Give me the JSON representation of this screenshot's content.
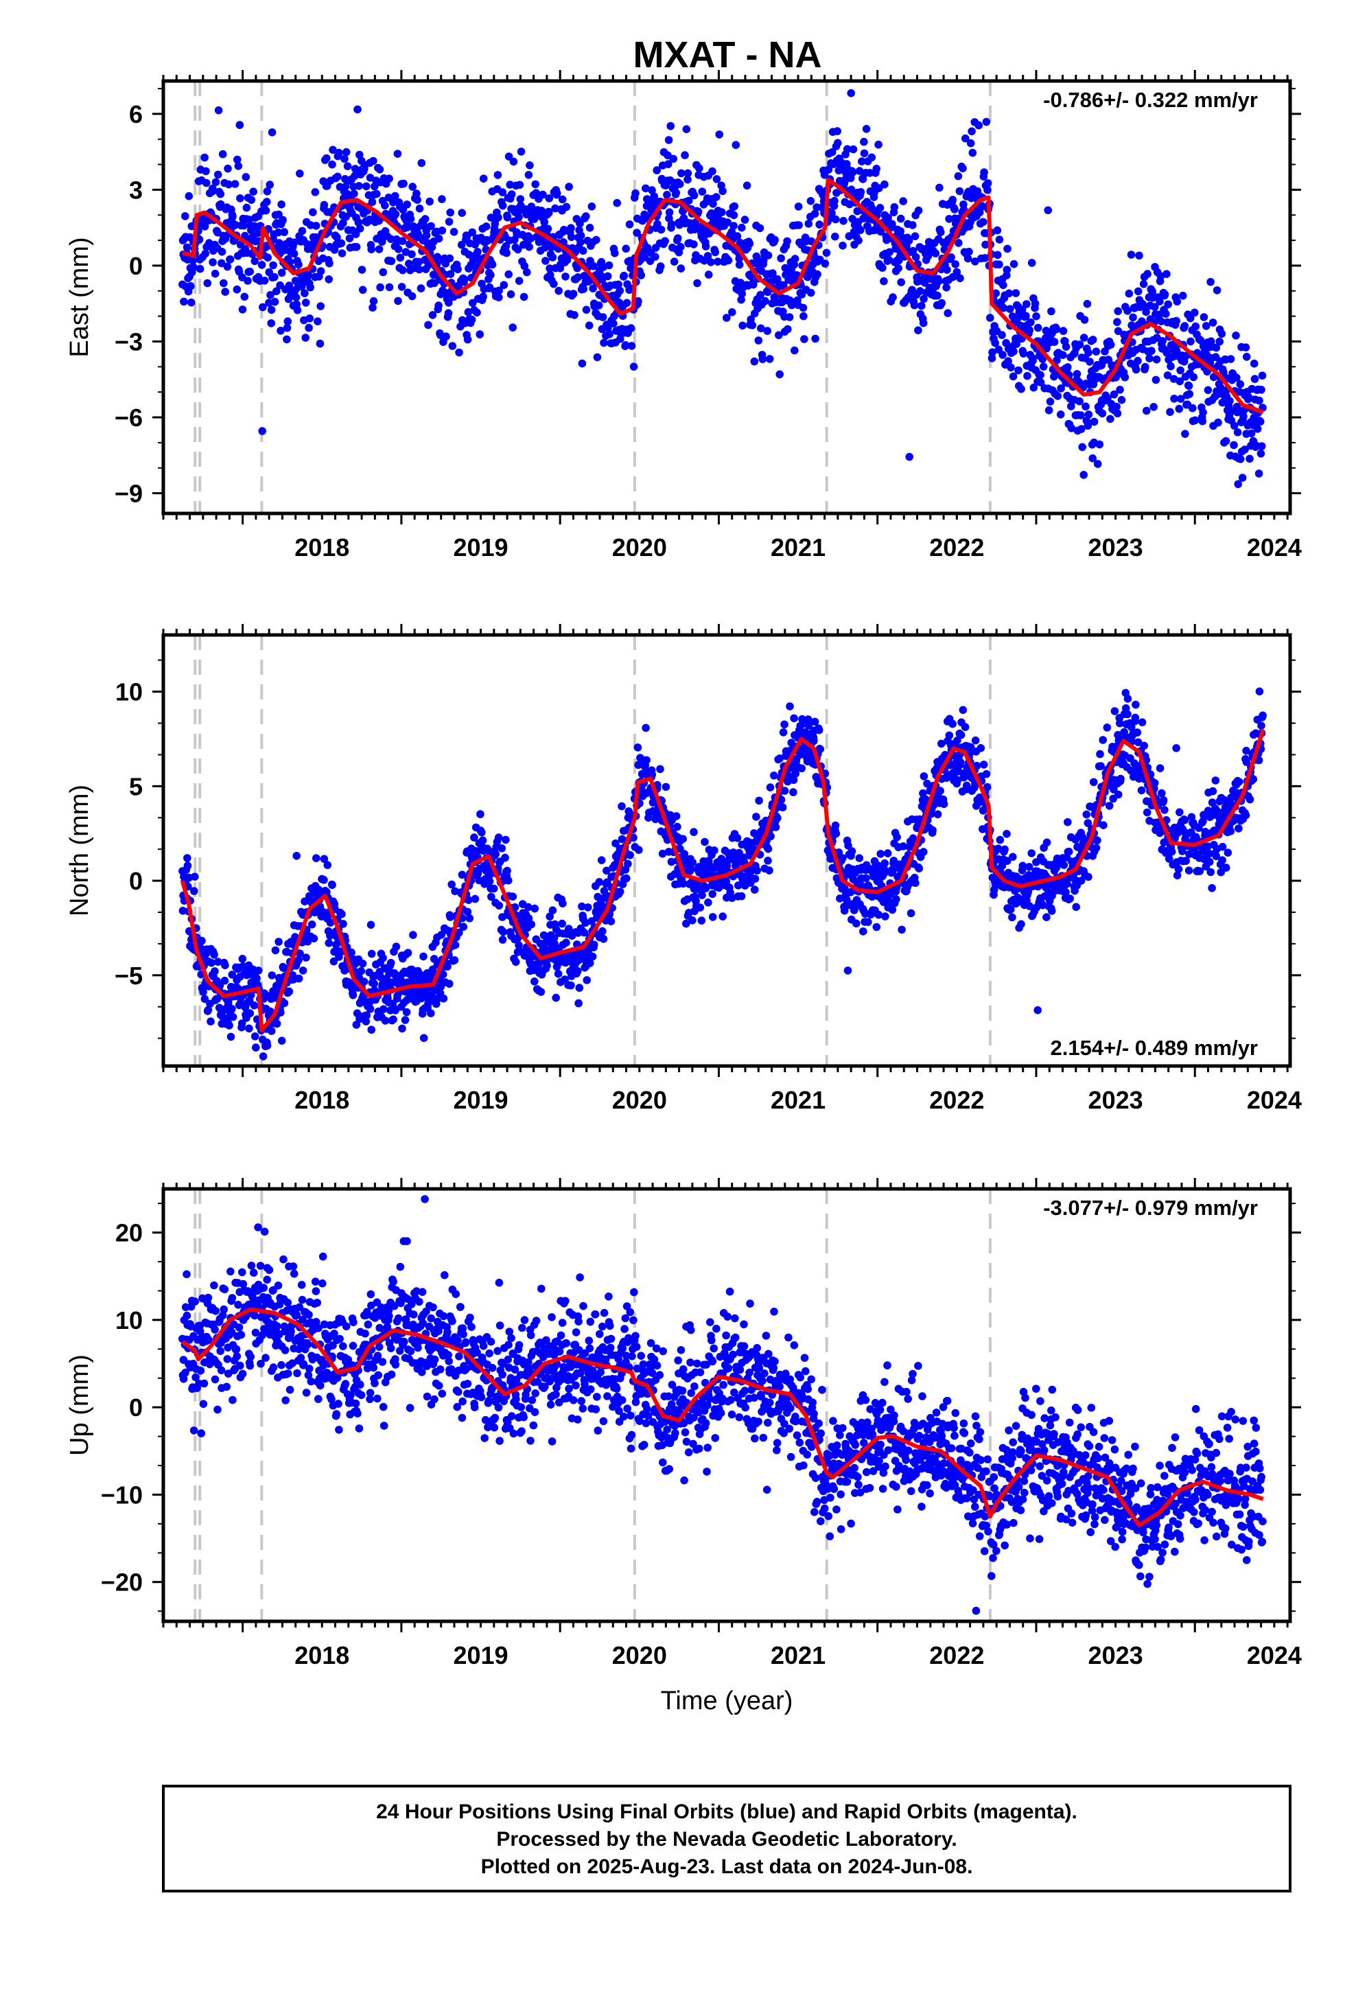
{
  "title": "MXAT - NA",
  "colors": {
    "final_orbits": "#0000ff",
    "model_fit": "#ff0000",
    "offset_lines": "#c8c8c8"
  },
  "caption": {
    "line1": "24 Hour Positions Using Final Orbits (blue) and Rapid Orbits (magenta).",
    "line2": "Processed by the Nevada Geodetic Laboratory.",
    "line3": "Plotted on 2025-Aug-23. Last data on 2024-Jun-08."
  },
  "chart_data": [
    {
      "type": "scatter",
      "ylabel": "East (mm)",
      "xlabel": "",
      "rate": "-0.786+/- 0.322 mm/yr",
      "rate_position": "top-right",
      "xlim": [
        2017.5,
        2024.6
      ],
      "ylim": [
        -9.8,
        7.3
      ],
      "xticks": [
        2018,
        2019,
        2020,
        2021,
        2022,
        2023,
        2024
      ],
      "yticks": [
        -9,
        -6,
        -3,
        0,
        3,
        6
      ],
      "offsets": [
        2017.7,
        2017.73,
        2018.12,
        2020.47,
        2021.68,
        2022.71
      ],
      "fit": {
        "x": [
          2017.62,
          2017.69,
          2017.71,
          2017.76,
          2017.85,
          2017.95,
          2018.05,
          2018.11,
          2018.13,
          2018.2,
          2018.32,
          2018.42,
          2018.52,
          2018.62,
          2018.72,
          2018.85,
          2019.0,
          2019.15,
          2019.25,
          2019.35,
          2019.45,
          2019.55,
          2019.65,
          2019.75,
          2019.9,
          2020.05,
          2020.2,
          2020.3,
          2020.38,
          2020.46,
          2020.48,
          2020.56,
          2020.66,
          2020.76,
          2020.88,
          2021.0,
          2021.12,
          2021.25,
          2021.38,
          2021.5,
          2021.6,
          2021.67,
          2021.69,
          2021.78,
          2021.9,
          2022.0,
          2022.12,
          2022.25,
          2022.35,
          2022.45,
          2022.55,
          2022.65,
          2022.7,
          2022.72,
          2022.85,
          2023.0,
          2023.15,
          2023.3,
          2023.4,
          2023.5,
          2023.6,
          2023.72,
          2023.85,
          2024.0,
          2024.15,
          2024.3,
          2024.43
        ],
        "y": [
          0.5,
          0.4,
          2.0,
          2.1,
          1.7,
          1.2,
          0.8,
          0.3,
          1.5,
          0.5,
          -0.3,
          -0.1,
          1.4,
          2.5,
          2.6,
          2.1,
          1.3,
          0.6,
          -0.4,
          -1.1,
          -0.7,
          0.5,
          1.5,
          1.7,
          1.2,
          0.6,
          -0.4,
          -1.3,
          -1.9,
          -1.7,
          0.4,
          1.7,
          2.6,
          2.5,
          1.8,
          1.3,
          0.7,
          -0.5,
          -1.1,
          -0.7,
          0.8,
          1.5,
          3.4,
          3.0,
          2.3,
          1.8,
          1.0,
          -0.2,
          -0.3,
          0.6,
          2.0,
          2.6,
          2.7,
          -1.5,
          -2.4,
          -3.1,
          -4.2,
          -5.1,
          -5.0,
          -4.1,
          -2.7,
          -2.3,
          -2.8,
          -3.6,
          -4.3,
          -5.5,
          -5.8
        ]
      },
      "scatter": {
        "sd": 1.2,
        "outlier": 1.6
      }
    },
    {
      "type": "scatter",
      "ylabel": "North (mm)",
      "xlabel": "",
      "rate": "2.154+/- 0.489 mm/yr",
      "rate_position": "bottom-right",
      "xlim": [
        2017.5,
        2024.6
      ],
      "ylim": [
        -9.8,
        13.0
      ],
      "xticks": [
        2018,
        2019,
        2020,
        2021,
        2022,
        2023,
        2024
      ],
      "yticks": [
        -5,
        0,
        5,
        10
      ],
      "offsets": [
        2017.7,
        2017.73,
        2018.12,
        2020.47,
        2021.68,
        2022.71
      ],
      "fit": {
        "x": [
          2017.62,
          2017.66,
          2017.71,
          2017.78,
          2017.88,
          2018.0,
          2018.1,
          2018.12,
          2018.2,
          2018.3,
          2018.42,
          2018.52,
          2018.6,
          2018.7,
          2018.8,
          2018.9,
          2019.05,
          2019.2,
          2019.32,
          2019.45,
          2019.55,
          2019.65,
          2019.75,
          2019.88,
          2020.0,
          2020.15,
          2020.3,
          2020.4,
          2020.47,
          2020.49,
          2020.57,
          2020.67,
          2020.78,
          2020.9,
          2021.05,
          2021.2,
          2021.3,
          2021.42,
          2021.52,
          2021.6,
          2021.66,
          2021.69,
          2021.78,
          2021.88,
          2022.0,
          2022.15,
          2022.25,
          2022.38,
          2022.48,
          2022.55,
          2022.65,
          2022.7,
          2022.72,
          2022.8,
          2022.9,
          2023.0,
          2023.15,
          2023.25,
          2023.35,
          2023.45,
          2023.55,
          2023.65,
          2023.75,
          2023.85,
          2024.0,
          2024.15,
          2024.3,
          2024.43
        ],
        "y": [
          0.0,
          -1.2,
          -3.7,
          -5.3,
          -6.1,
          -5.9,
          -5.7,
          -7.9,
          -7.1,
          -4.5,
          -1.5,
          -0.8,
          -2.5,
          -5.2,
          -6.1,
          -5.9,
          -5.6,
          -5.5,
          -3.0,
          0.9,
          1.3,
          -0.7,
          -2.8,
          -4.1,
          -3.8,
          -3.5,
          -1.5,
          1.5,
          3.3,
          5.2,
          5.4,
          3.0,
          0.3,
          0.0,
          0.3,
          0.9,
          2.5,
          6.0,
          7.5,
          7.0,
          5.2,
          2.5,
          0.0,
          -0.5,
          -0.6,
          0.0,
          2.0,
          5.5,
          7.0,
          6.8,
          5.0,
          4.0,
          0.7,
          0.0,
          -0.3,
          -0.1,
          0.2,
          0.6,
          2.3,
          5.7,
          7.4,
          6.8,
          4.0,
          2.0,
          1.9,
          2.4,
          4.5,
          8.0
        ]
      },
      "scatter": {
        "sd": 1.0,
        "outlier": 1.4
      }
    },
    {
      "type": "scatter",
      "ylabel": "Up (mm)",
      "xlabel": "Time (year)",
      "rate": "-3.077+/- 0.979 mm/yr",
      "rate_position": "top-right",
      "xlim": [
        2017.5,
        2024.6
      ],
      "ylim": [
        -24.5,
        25.0
      ],
      "xticks": [
        2018,
        2019,
        2020,
        2021,
        2022,
        2023,
        2024
      ],
      "yticks": [
        -20,
        -10,
        0,
        10,
        20
      ],
      "offsets": [
        2017.7,
        2017.73,
        2018.12,
        2020.47,
        2021.68,
        2022.71
      ],
      "fit": {
        "x": [
          2017.62,
          2017.7,
          2017.72,
          2017.8,
          2017.92,
          2018.05,
          2018.2,
          2018.35,
          2018.48,
          2018.6,
          2018.72,
          2018.8,
          2018.95,
          2019.1,
          2019.25,
          2019.4,
          2019.55,
          2019.65,
          2019.78,
          2019.9,
          2020.05,
          2020.2,
          2020.35,
          2020.45,
          2020.47,
          2020.55,
          2020.65,
          2020.75,
          2020.85,
          2021.0,
          2021.15,
          2021.3,
          2021.45,
          2021.55,
          2021.65,
          2021.68,
          2021.72,
          2021.85,
          2022.0,
          2022.1,
          2022.25,
          2022.4,
          2022.55,
          2022.65,
          2022.71,
          2022.75,
          2022.85,
          2023.0,
          2023.15,
          2023.3,
          2023.45,
          2023.55,
          2023.65,
          2023.78,
          2023.9,
          2024.05,
          2024.2,
          2024.35,
          2024.43
        ],
        "y": [
          7.5,
          6.5,
          5.5,
          7.0,
          10.0,
          11.2,
          10.8,
          9.5,
          7.0,
          4.0,
          4.5,
          7.0,
          8.8,
          8.3,
          7.4,
          6.3,
          3.5,
          1.5,
          2.5,
          5.0,
          5.8,
          5.0,
          4.5,
          4.0,
          3.0,
          2.5,
          -1.0,
          -1.5,
          1.0,
          3.5,
          3.0,
          2.0,
          1.5,
          -1.0,
          -6.0,
          -7.5,
          -8.0,
          -6.0,
          -3.5,
          -3.3,
          -4.5,
          -5.0,
          -7.5,
          -9.0,
          -12.5,
          -11.0,
          -8.5,
          -5.5,
          -6.0,
          -7.0,
          -8.0,
          -11.0,
          -13.5,
          -12.0,
          -9.5,
          -8.5,
          -9.5,
          -10.0,
          -10.5
        ]
      },
      "scatter": {
        "sd": 3.3,
        "outlier": 4.5
      }
    }
  ]
}
